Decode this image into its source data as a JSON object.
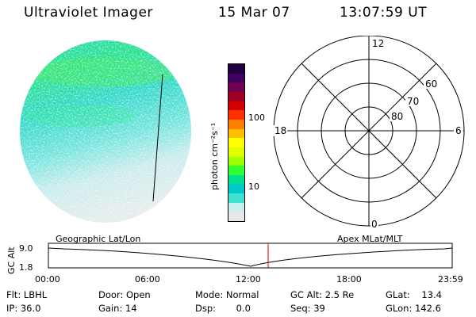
{
  "header": {
    "instrument": "Ultraviolet Imager",
    "date": "15 Mar 07",
    "time": "13:07:59 UT"
  },
  "colorbar": {
    "unit_label": "photon cm⁻²s⁻¹",
    "ticks": [
      "100",
      "10"
    ],
    "scale": "log",
    "colors": [
      "#e8e8e8",
      "#c8f0f0",
      "#40e0d0",
      "#00c8c8",
      "#00e090",
      "#30ff30",
      "#a0ff00",
      "#e0ff00",
      "#ffff00",
      "#ffc000",
      "#ff8000",
      "#ff3000",
      "#d00000",
      "#a00020",
      "#700050",
      "#400060",
      "#200040"
    ]
  },
  "polar_plot": {
    "mlt_labels": [
      "12",
      "18",
      "6",
      "0"
    ],
    "lat_labels": [
      "60",
      "70",
      "80"
    ]
  },
  "timeline": {
    "left_caption": "Geographic Lat/Lon",
    "right_caption": "Apex MLat/MLT",
    "y_axis_label": "GC Alt",
    "y_ticks": [
      "9.0",
      "1.8"
    ],
    "x_ticks": [
      "00:00",
      "06:00",
      "12:00",
      "18:00",
      "23:59"
    ],
    "marker_color": "#cc0000",
    "curve_color": "#000000"
  },
  "status": {
    "filter": "Flt: LBHL",
    "ip": "IP: 36.0",
    "door": "Door: Open",
    "gain": "Gain: 14",
    "mode": "Mode: Normal",
    "dsp": "Dsp:       0.0",
    "gc_alt": "GC Alt: 2.5 Re",
    "seq": "Seq: 39",
    "glat": "GLat:    13.4",
    "glon": "GLon: 142.6"
  }
}
